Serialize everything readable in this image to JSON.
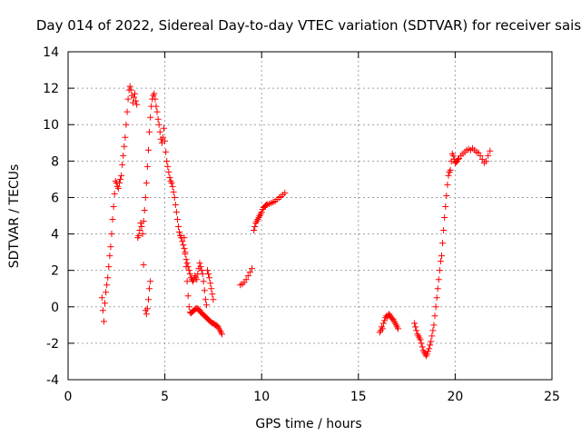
{
  "chart_data": {
    "type": "scatter",
    "title": "Day 014 of 2022, Sidereal Day-to-day VTEC variation (SDTVAR) for receiver sais",
    "xlabel": "GPS time / hours",
    "ylabel": "SDTVAR / TECUs",
    "xlim": [
      0,
      25
    ],
    "ylim": [
      -4,
      14
    ],
    "xticks": [
      0,
      5,
      10,
      15,
      20,
      25
    ],
    "xtick_labels": [
      "0",
      "5",
      "10",
      "15",
      "20",
      "25"
    ],
    "yticks": [
      -4,
      -2,
      0,
      2,
      4,
      6,
      8,
      10,
      12,
      14
    ],
    "ytick_labels": [
      "-4",
      "-2",
      "0",
      "2",
      "4",
      "6",
      "8",
      "10",
      "12",
      "14"
    ],
    "grid": true,
    "marker": "plus",
    "color": "#ff0000",
    "series": [
      {
        "name": "sais",
        "segments": [
          [
            [
              1.75,
              0.5
            ],
            [
              1.8,
              -0.2
            ],
            [
              1.85,
              -0.8
            ],
            [
              1.9,
              0.2
            ],
            [
              1.95,
              0.8
            ],
            [
              2.0,
              1.2
            ],
            [
              2.05,
              1.6
            ],
            [
              2.1,
              2.2
            ],
            [
              2.15,
              2.8
            ],
            [
              2.2,
              3.3
            ],
            [
              2.25,
              4.0
            ],
            [
              2.3,
              4.8
            ],
            [
              2.35,
              5.5
            ],
            [
              2.4,
              6.2
            ],
            [
              2.45,
              6.9
            ],
            [
              2.5,
              6.8
            ],
            [
              2.55,
              6.6
            ],
            [
              2.6,
              6.5
            ],
            [
              2.65,
              6.8
            ],
            [
              2.7,
              7.0
            ],
            [
              2.75,
              7.2
            ],
            [
              2.8,
              7.8
            ],
            [
              2.85,
              8.3
            ],
            [
              2.9,
              8.8
            ],
            [
              2.95,
              9.3
            ],
            [
              3.0,
              10.0
            ],
            [
              3.05,
              10.7
            ],
            [
              3.1,
              11.4
            ],
            [
              3.15,
              11.9
            ],
            [
              3.2,
              12.1
            ],
            [
              3.25,
              11.9
            ],
            [
              3.3,
              11.6
            ],
            [
              3.35,
              11.2
            ],
            [
              3.4,
              11.5
            ],
            [
              3.45,
              11.7
            ],
            [
              3.5,
              11.3
            ],
            [
              3.55,
              11.1
            ]
          ],
          [
            [
              3.6,
              3.8
            ],
            [
              3.65,
              3.9
            ],
            [
              3.7,
              4.2
            ],
            [
              3.75,
              4.6
            ],
            [
              3.8,
              4.4
            ],
            [
              3.85,
              4.0
            ],
            [
              3.9,
              4.7
            ],
            [
              3.95,
              5.3
            ]
          ],
          [
            [
              3.9,
              2.3
            ]
          ],
          [
            [
              4.0,
              6.0
            ],
            [
              4.05,
              6.8
            ],
            [
              4.1,
              7.7
            ],
            [
              4.15,
              8.6
            ],
            [
              4.2,
              9.6
            ],
            [
              4.25,
              10.4
            ],
            [
              4.3,
              11.0
            ],
            [
              4.35,
              11.4
            ],
            [
              4.4,
              11.6
            ],
            [
              4.45,
              11.7
            ],
            [
              4.5,
              11.4
            ],
            [
              4.55,
              11.0
            ],
            [
              4.6,
              10.7
            ],
            [
              4.65,
              10.3
            ],
            [
              4.7,
              10.0
            ],
            [
              4.75,
              9.6
            ],
            [
              4.8,
              9.2
            ],
            [
              4.85,
              9.0
            ],
            [
              4.9,
              9.3
            ],
            [
              4.95,
              9.8
            ],
            [
              5.0,
              9.1
            ],
            [
              5.05,
              8.5
            ],
            [
              5.1,
              8.0
            ],
            [
              5.15,
              7.7
            ],
            [
              5.2,
              7.4
            ],
            [
              5.25,
              7.1
            ],
            [
              5.3,
              6.9
            ],
            [
              5.35,
              6.8
            ],
            [
              5.4,
              6.6
            ],
            [
              5.45,
              6.3
            ],
            [
              5.5,
              6.0
            ],
            [
              5.55,
              5.6
            ],
            [
              5.6,
              5.2
            ],
            [
              5.65,
              4.8
            ],
            [
              5.7,
              4.4
            ],
            [
              5.75,
              4.1
            ],
            [
              5.8,
              3.9
            ],
            [
              5.85,
              3.8
            ],
            [
              5.9,
              3.6
            ],
            [
              5.95,
              3.4
            ],
            [
              6.0,
              3.2
            ],
            [
              6.05,
              2.9
            ],
            [
              6.1,
              2.6
            ],
            [
              6.15,
              2.4
            ],
            [
              6.2,
              2.2
            ],
            [
              6.25,
              2.0
            ],
            [
              6.3,
              1.8
            ],
            [
              6.35,
              1.6
            ],
            [
              6.4,
              1.5
            ],
            [
              6.45,
              1.4
            ],
            [
              6.5,
              1.5
            ],
            [
              6.55,
              1.7
            ],
            [
              6.6,
              1.6
            ],
            [
              6.65,
              1.5
            ],
            [
              6.7,
              1.8
            ],
            [
              6.75,
              2.1
            ],
            [
              6.8,
              2.4
            ],
            [
              6.85,
              2.2
            ],
            [
              6.9,
              2.0
            ],
            [
              6.95,
              1.8
            ],
            [
              7.0,
              1.4
            ],
            [
              7.05,
              0.9
            ],
            [
              7.1,
              0.4
            ],
            [
              7.15,
              0.1
            ]
          ],
          [
            [
              4.0,
              -0.2
            ],
            [
              4.05,
              -0.4
            ],
            [
              4.1,
              -0.1
            ],
            [
              4.15,
              0.4
            ],
            [
              4.2,
              1.0
            ],
            [
              4.25,
              1.4
            ]
          ],
          [
            [
              6.0,
              3.8
            ],
            [
              6.05,
              3.0
            ],
            [
              6.1,
              2.2
            ],
            [
              6.15,
              1.4
            ],
            [
              6.2,
              0.6
            ],
            [
              6.25,
              0.0
            ],
            [
              6.3,
              -0.3
            ],
            [
              6.35,
              -0.35
            ],
            [
              6.4,
              -0.3
            ],
            [
              6.45,
              -0.25
            ],
            [
              6.5,
              -0.2
            ],
            [
              6.55,
              -0.15
            ],
            [
              6.6,
              -0.1
            ],
            [
              6.65,
              -0.1
            ],
            [
              6.7,
              -0.1
            ],
            [
              6.75,
              -0.15
            ],
            [
              6.8,
              -0.2
            ],
            [
              6.85,
              -0.3
            ],
            [
              6.9,
              -0.35
            ],
            [
              6.95,
              -0.4
            ],
            [
              7.0,
              -0.45
            ],
            [
              7.05,
              -0.5
            ],
            [
              7.1,
              -0.55
            ],
            [
              7.15,
              -0.6
            ],
            [
              7.2,
              -0.65
            ],
            [
              7.25,
              -0.7
            ],
            [
              7.3,
              -0.75
            ],
            [
              7.35,
              -0.8
            ],
            [
              7.4,
              -0.85
            ],
            [
              7.45,
              -0.9
            ],
            [
              7.5,
              -0.9
            ],
            [
              7.55,
              -0.95
            ],
            [
              7.6,
              -1.0
            ],
            [
              7.65,
              -1.0
            ],
            [
              7.7,
              -1.05
            ],
            [
              7.75,
              -1.1
            ],
            [
              7.8,
              -1.2
            ],
            [
              7.85,
              -1.3
            ],
            [
              7.9,
              -1.4
            ],
            [
              7.95,
              -1.5
            ]
          ],
          [
            [
              7.2,
              2.0
            ],
            [
              7.25,
              1.8
            ],
            [
              7.3,
              1.6
            ],
            [
              7.35,
              1.3
            ],
            [
              7.4,
              1.0
            ],
            [
              7.45,
              0.7
            ],
            [
              7.5,
              0.4
            ]
          ],
          [
            [
              8.9,
              1.2
            ],
            [
              9.0,
              1.25
            ],
            [
              9.1,
              1.35
            ],
            [
              9.2,
              1.5
            ],
            [
              9.3,
              1.7
            ],
            [
              9.4,
              1.9
            ],
            [
              9.5,
              2.1
            ]
          ],
          [
            [
              9.6,
              4.2
            ],
            [
              9.65,
              4.4
            ],
            [
              9.7,
              4.6
            ],
            [
              9.75,
              4.7
            ],
            [
              9.8,
              4.8
            ],
            [
              9.85,
              4.9
            ],
            [
              9.9,
              5.0
            ],
            [
              9.95,
              5.1
            ],
            [
              10.0,
              5.2
            ],
            [
              10.05,
              5.35
            ],
            [
              10.1,
              5.45
            ],
            [
              10.15,
              5.5
            ],
            [
              10.2,
              5.55
            ],
            [
              10.25,
              5.6
            ],
            [
              10.3,
              5.62
            ],
            [
              10.4,
              5.65
            ],
            [
              10.5,
              5.7
            ],
            [
              10.6,
              5.75
            ],
            [
              10.7,
              5.8
            ],
            [
              10.8,
              5.9
            ],
            [
              10.9,
              6.0
            ],
            [
              11.0,
              6.05
            ],
            [
              11.1,
              6.15
            ],
            [
              11.2,
              6.25
            ]
          ],
          [
            [
              16.1,
              -1.4
            ],
            [
              16.15,
              -1.3
            ],
            [
              16.2,
              -1.1
            ],
            [
              16.25,
              -1.2
            ],
            [
              16.3,
              -0.9
            ],
            [
              16.35,
              -0.75
            ],
            [
              16.4,
              -0.6
            ],
            [
              16.45,
              -0.5
            ],
            [
              16.5,
              -0.55
            ],
            [
              16.55,
              -0.45
            ],
            [
              16.6,
              -0.4
            ],
            [
              16.65,
              -0.5
            ],
            [
              16.7,
              -0.6
            ],
            [
              16.75,
              -0.65
            ],
            [
              16.8,
              -0.7
            ],
            [
              16.85,
              -0.8
            ],
            [
              16.9,
              -0.9
            ],
            [
              16.95,
              -1.0
            ],
            [
              17.0,
              -1.1
            ],
            [
              17.05,
              -1.2
            ]
          ],
          [
            [
              17.9,
              -0.9
            ],
            [
              17.95,
              -1.1
            ],
            [
              18.0,
              -1.3
            ],
            [
              18.05,
              -1.5
            ],
            [
              18.1,
              -1.6
            ],
            [
              18.15,
              -1.7
            ],
            [
              18.2,
              -1.8
            ],
            [
              18.25,
              -2.0
            ],
            [
              18.3,
              -2.2
            ],
            [
              18.35,
              -2.4
            ],
            [
              18.4,
              -2.5
            ],
            [
              18.45,
              -2.6
            ],
            [
              18.5,
              -2.7
            ],
            [
              18.55,
              -2.6
            ],
            [
              18.6,
              -2.45
            ],
            [
              18.65,
              -2.3
            ],
            [
              18.7,
              -2.1
            ],
            [
              18.75,
              -1.9
            ],
            [
              18.8,
              -1.6
            ],
            [
              18.85,
              -1.3
            ],
            [
              18.9,
              -1.0
            ],
            [
              18.95,
              -0.5
            ],
            [
              19.0,
              0.0
            ],
            [
              19.05,
              0.5
            ],
            [
              19.1,
              1.0
            ],
            [
              19.15,
              1.5
            ],
            [
              19.2,
              2.0
            ],
            [
              19.25,
              2.5
            ],
            [
              19.3,
              2.8
            ],
            [
              19.35,
              3.5
            ],
            [
              19.4,
              4.2
            ],
            [
              19.45,
              4.9
            ],
            [
              19.5,
              5.5
            ],
            [
              19.55,
              6.1
            ],
            [
              19.6,
              6.7
            ],
            [
              19.65,
              7.2
            ],
            [
              19.7,
              7.4
            ],
            [
              19.75,
              7.5
            ],
            [
              19.8,
              8.0
            ],
            [
              19.85,
              8.4
            ],
            [
              19.9,
              8.3
            ],
            [
              19.95,
              8.1
            ],
            [
              20.0,
              7.9
            ],
            [
              20.05,
              7.95
            ],
            [
              20.1,
              8.0
            ],
            [
              20.15,
              8.1
            ],
            [
              20.2,
              8.15
            ],
            [
              20.3,
              8.3
            ],
            [
              20.4,
              8.4
            ],
            [
              20.5,
              8.5
            ],
            [
              20.6,
              8.6
            ],
            [
              20.7,
              8.65
            ],
            [
              20.8,
              8.6
            ],
            [
              20.9,
              8.7
            ],
            [
              21.0,
              8.6
            ],
            [
              21.1,
              8.5
            ],
            [
              21.2,
              8.45
            ],
            [
              21.3,
              8.3
            ],
            [
              21.4,
              8.1
            ],
            [
              21.5,
              7.9
            ],
            [
              21.6,
              8.0
            ],
            [
              21.7,
              8.3
            ],
            [
              21.8,
              8.55
            ]
          ]
        ]
      }
    ]
  }
}
